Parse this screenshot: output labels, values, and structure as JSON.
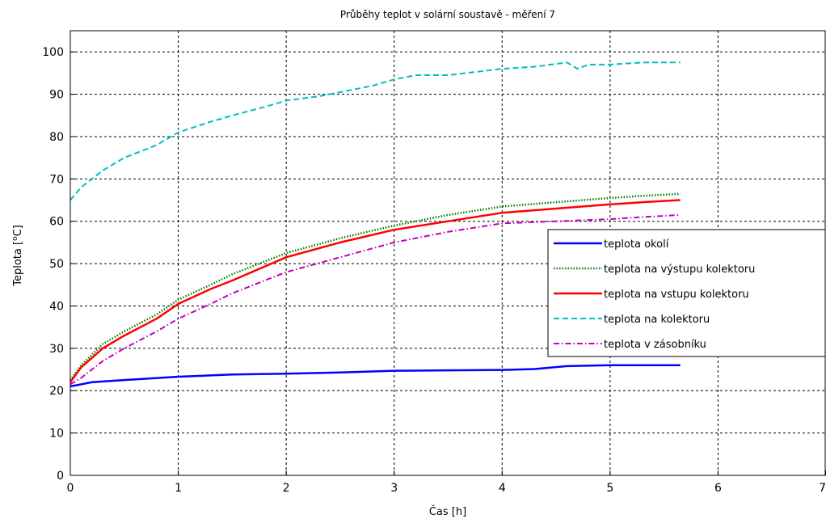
{
  "chart_data": {
    "type": "line",
    "title": "Průběhy teplot v solární soustavě - měření 7",
    "xlabel": "Čas  [h]",
    "ylabel_prefix": "Teplota [",
    "ylabel_sup": "o",
    "ylabel_suffix": "C]",
    "xlim": [
      0,
      7
    ],
    "ylim": [
      0,
      105
    ],
    "xticks": [
      0,
      1,
      2,
      3,
      4,
      5,
      6,
      7
    ],
    "yticks": [
      0,
      10,
      20,
      30,
      40,
      50,
      60,
      70,
      80,
      90,
      100
    ],
    "grid": true,
    "legend_position": "right",
    "series": [
      {
        "name": "teplota okolí",
        "color": "#0000ff",
        "style": "solid",
        "x": [
          0,
          0.2,
          0.5,
          1.0,
          1.5,
          2.0,
          2.5,
          3.0,
          3.5,
          4.0,
          4.3,
          4.6,
          5.0,
          5.3,
          5.65
        ],
        "y": [
          21,
          22,
          22.5,
          23.3,
          23.8,
          24,
          24.3,
          24.7,
          24.8,
          24.9,
          25.1,
          25.8,
          26,
          26,
          26
        ]
      },
      {
        "name": "teplota na výstupu kolektoru",
        "color": "#007f00",
        "style": "dotted",
        "x": [
          0,
          0.1,
          0.3,
          0.5,
          0.8,
          1.0,
          1.3,
          1.5,
          2.0,
          2.5,
          3.0,
          3.5,
          4.0,
          4.5,
          5.0,
          5.3,
          5.65
        ],
        "y": [
          22.5,
          26,
          31,
          34,
          38,
          41.5,
          45,
          47.5,
          52.5,
          56,
          59,
          61.5,
          63.5,
          64.5,
          65.5,
          66,
          66.5
        ]
      },
      {
        "name": "teplota na vstupu kolektoru",
        "color": "#ff0000",
        "style": "solid",
        "x": [
          0,
          0.1,
          0.3,
          0.5,
          0.8,
          1.0,
          1.3,
          1.5,
          2.0,
          2.5,
          3.0,
          3.5,
          4.0,
          4.5,
          5.0,
          5.3,
          5.65
        ],
        "y": [
          22,
          25.5,
          30,
          33,
          37,
          40.5,
          44,
          46,
          51.5,
          55,
          58,
          60,
          62,
          63,
          64,
          64.5,
          65
        ]
      },
      {
        "name": "teplota na kolektoru",
        "color": "#00bfbf",
        "style": "dashed",
        "x": [
          0,
          0.1,
          0.3,
          0.5,
          0.8,
          1.0,
          1.3,
          1.5,
          1.8,
          2.0,
          2.3,
          2.5,
          2.8,
          3.0,
          3.2,
          3.5,
          4.0,
          4.3,
          4.6,
          4.7,
          4.8,
          5.0,
          5.3,
          5.65
        ],
        "y": [
          65,
          68,
          72,
          75,
          78,
          81,
          83.5,
          85,
          87,
          88.5,
          89.5,
          90.5,
          92,
          93.5,
          94.5,
          94.5,
          96,
          96.5,
          97.5,
          96,
          97,
          97,
          97.5,
          97.5
        ]
      },
      {
        "name": "teplota v zásobníku",
        "color": "#bf00bf",
        "style": "dashdot",
        "x": [
          0,
          0.1,
          0.3,
          0.5,
          0.8,
          1.0,
          1.3,
          1.5,
          2.0,
          2.5,
          3.0,
          3.5,
          4.0,
          4.5,
          5.0,
          5.3,
          5.65
        ],
        "y": [
          21.5,
          23,
          27,
          30,
          34,
          37,
          40.5,
          43,
          48,
          51.5,
          55,
          57.5,
          59.5,
          60,
          60.5,
          61,
          61.5
        ]
      }
    ]
  }
}
